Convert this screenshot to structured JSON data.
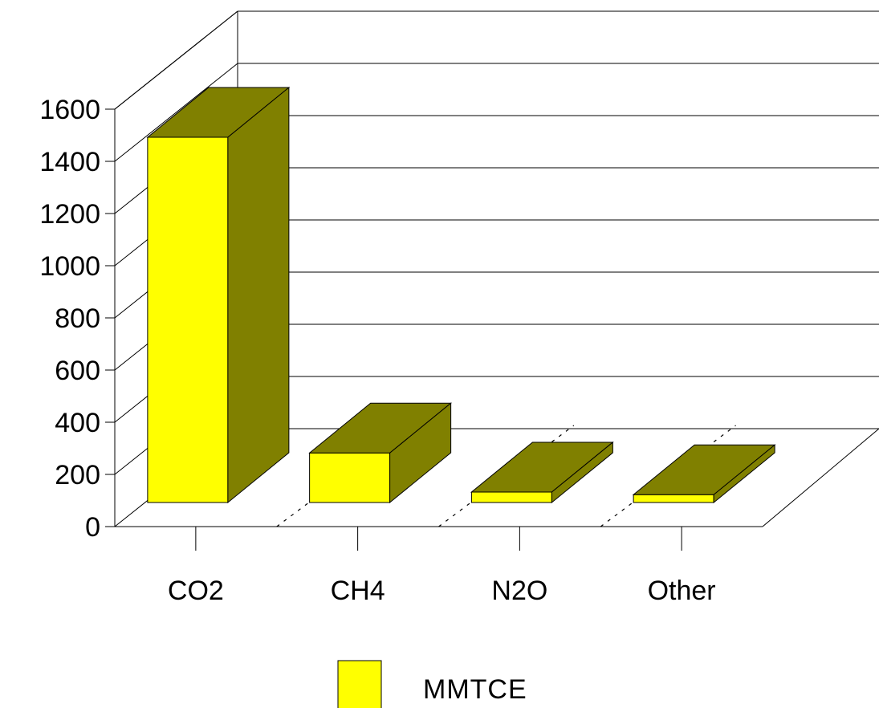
{
  "chart_data": {
    "type": "bar",
    "categories": [
      "CO2",
      "CH4",
      "N2O",
      "Other"
    ],
    "series": [
      {
        "name": "MMTCE",
        "values": [
          1400,
          190,
          40,
          30
        ],
        "color": "#ffff00",
        "side_color": "#808000"
      }
    ],
    "y_ticks": [
      "0",
      "200",
      "400",
      "600",
      "800",
      "1000",
      "1200",
      "1400",
      "1600"
    ],
    "ylim": [
      0,
      1600
    ],
    "grid": true,
    "legend_position": "bottom-center",
    "title": "",
    "xlabel": "",
    "ylabel": ""
  }
}
